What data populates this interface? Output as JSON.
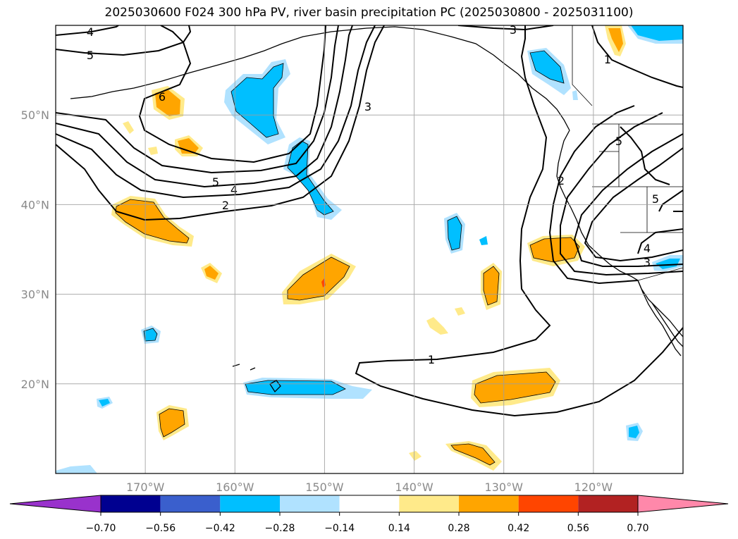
{
  "title": "2025030600 F024 300 hPa PV, river basin precipitation PC (2025030800 - 2025031100)",
  "map": {
    "lon_range": [
      -180,
      -110
    ],
    "lat_range": [
      10,
      60
    ],
    "lon_ticks": [
      {
        "value": -170,
        "label": "170°W"
      },
      {
        "value": -160,
        "label": "160°W"
      },
      {
        "value": -150,
        "label": "150°W"
      },
      {
        "value": -140,
        "label": "140°W"
      },
      {
        "value": -130,
        "label": "130°W"
      },
      {
        "value": -120,
        "label": "120°W"
      }
    ],
    "lat_ticks": [
      {
        "value": 20,
        "label": "20°N"
      },
      {
        "value": 30,
        "label": "30°N"
      },
      {
        "value": 40,
        "label": "40°N"
      },
      {
        "value": 50,
        "label": "50°N"
      }
    ],
    "grid": true
  },
  "pv_contours": {
    "labels": [
      "1",
      "2",
      "3",
      "4",
      "5",
      "6"
    ]
  },
  "colorbar": {
    "ticks": [
      "−0.70",
      "−0.56",
      "−0.42",
      "−0.28",
      "−0.14",
      "0.14",
      "0.28",
      "0.42",
      "0.56",
      "0.70"
    ],
    "under_color": "#9932cc",
    "over_color": "#ff88aa",
    "colors": [
      "#000090",
      "#3a5fcd",
      "#00bfff",
      "#b0e2ff",
      "#ffffff",
      "#ffea8a",
      "#ffa500",
      "#ff4500",
      "#b22222"
    ]
  },
  "colors": {
    "negative_strong": "#00bfff",
    "negative_weak": "#b0e2ff",
    "positive_weak": "#ffea8a",
    "positive_strong": "#ffa500",
    "positive_peak": "#ff4500"
  }
}
